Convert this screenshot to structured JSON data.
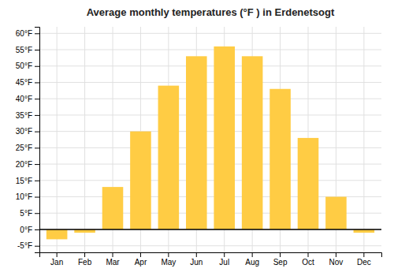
{
  "chart_data": {
    "type": "bar",
    "title": "Average monthly temperatures (°F ) in Erdenetsogt",
    "categories": [
      "Jan",
      "Feb",
      "Mar",
      "Apr",
      "May",
      "Jun",
      "Jul",
      "Aug",
      "Sep",
      "Oct",
      "Nov",
      "Dec"
    ],
    "values": [
      -3,
      -1,
      13,
      30,
      44,
      53,
      56,
      53,
      43,
      28,
      10,
      -1
    ],
    "color": "#FFCC44",
    "ylim": [
      -7,
      62
    ],
    "yticks": [
      {
        "value": -5,
        "label": "-5°F"
      },
      {
        "value": 0,
        "label": "0°F"
      },
      {
        "value": 5,
        "label": "5°F"
      },
      {
        "value": 10,
        "label": "10°F"
      },
      {
        "value": 15,
        "label": "15°F"
      },
      {
        "value": 20,
        "label": "20°F"
      },
      {
        "value": 25,
        "label": "25°F"
      },
      {
        "value": 30,
        "label": "30°F"
      },
      {
        "value": 35,
        "label": "35°F"
      },
      {
        "value": 40,
        "label": "40°F"
      },
      {
        "value": 45,
        "label": "45°F"
      },
      {
        "value": 50,
        "label": "50°F"
      },
      {
        "value": 55,
        "label": "55°F"
      },
      {
        "value": 60,
        "label": "60°F"
      }
    ],
    "grid": true
  }
}
